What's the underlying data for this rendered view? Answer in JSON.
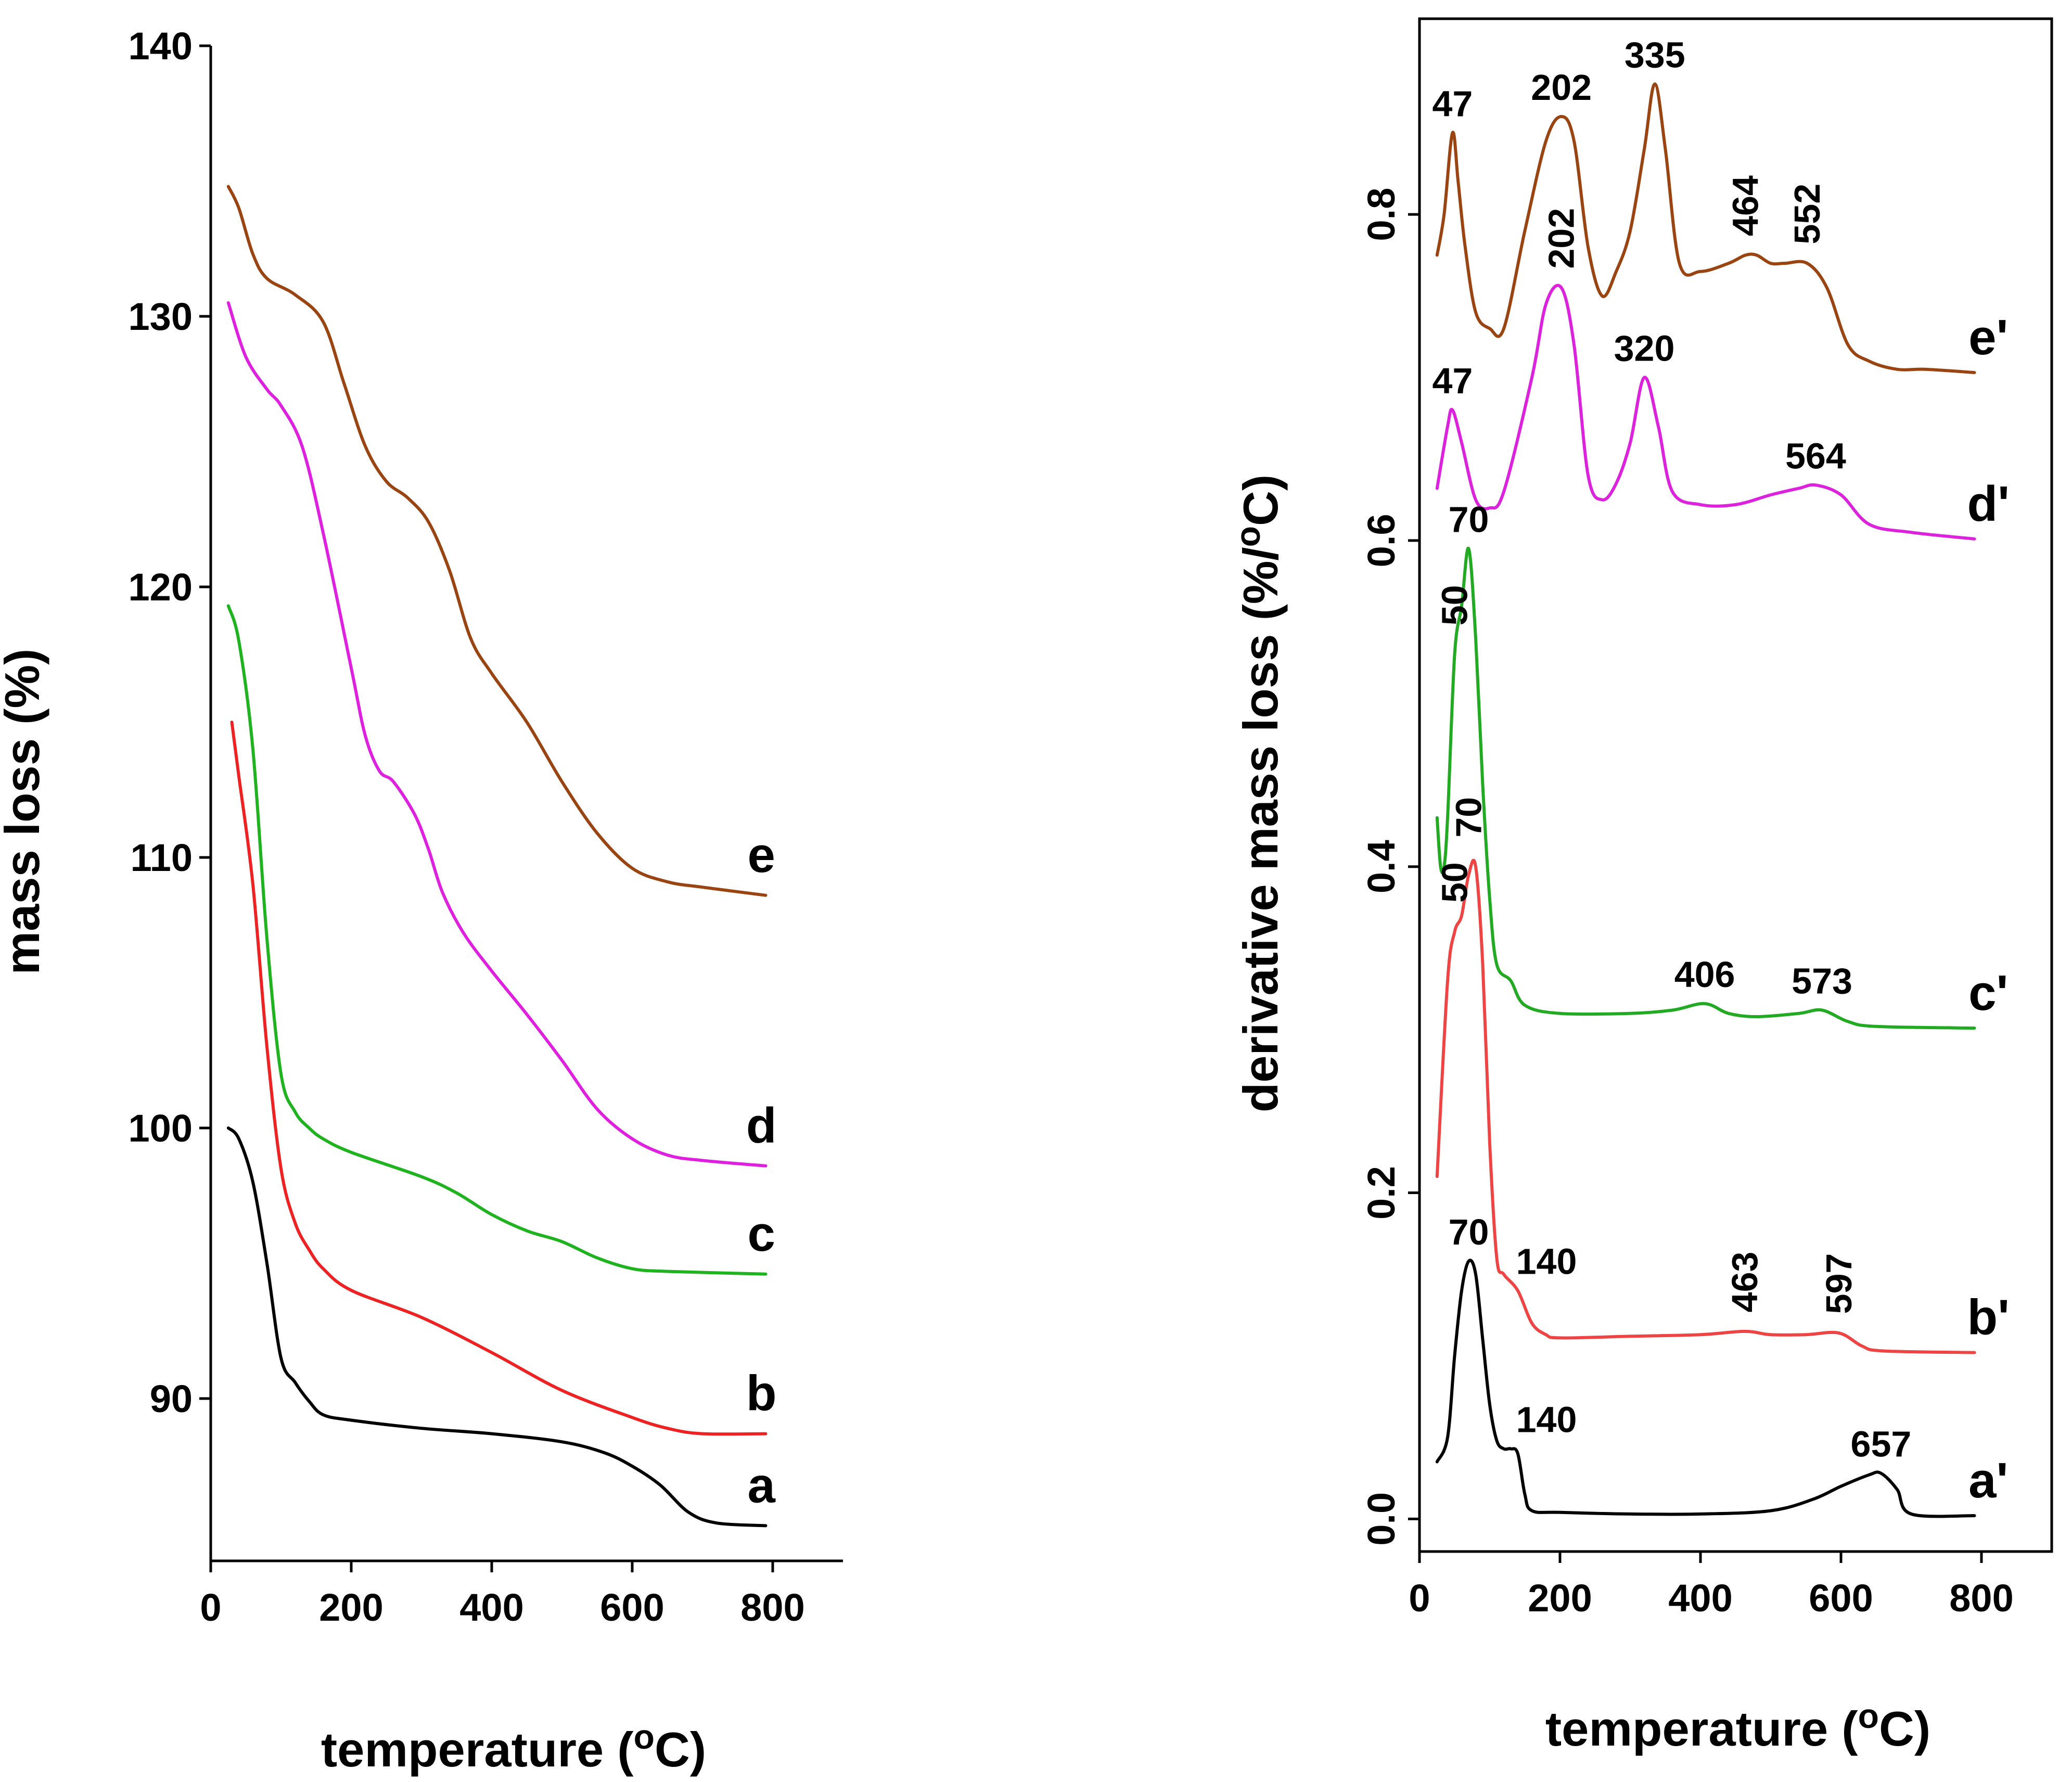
{
  "chart_data": [
    {
      "type": "line",
      "panel": "left",
      "title": "",
      "xlabel": "temperature",
      "xlabel_unit": "(oC)",
      "ylabel": "mass loss (%)",
      "xlim": [
        0,
        900
      ],
      "ylim": [
        84,
        140
      ],
      "xticks": [
        0,
        200,
        400,
        600,
        800
      ],
      "yticks": [
        90,
        100,
        110,
        120,
        130,
        140
      ],
      "grid": false,
      "series": [
        {
          "name": "a",
          "color": "#000000",
          "x": [
            25,
            40,
            60,
            80,
            100,
            120,
            140,
            160,
            200,
            300,
            400,
            500,
            560,
            600,
            640,
            680,
            720,
            790
          ],
          "y": [
            100,
            99.6,
            98,
            95,
            91.5,
            90.6,
            89.9,
            89.4,
            89.2,
            88.9,
            88.7,
            88.4,
            88.0,
            87.5,
            86.8,
            85.8,
            85.4,
            85.3
          ]
        },
        {
          "name": "b",
          "color": "#ee2222",
          "x": [
            30,
            40,
            60,
            80,
            100,
            120,
            140,
            160,
            200,
            300,
            400,
            500,
            600,
            650,
            700,
            790
          ],
          "y": [
            115,
            113,
            109,
            103,
            98.5,
            96.5,
            95.5,
            94.8,
            94.0,
            93.0,
            91.7,
            90.3,
            89.3,
            88.9,
            88.7,
            88.7
          ]
        },
        {
          "name": "c",
          "color": "#1fb31f",
          "x": [
            25,
            40,
            60,
            80,
            100,
            120,
            140,
            160,
            200,
            300,
            350,
            400,
            450,
            500,
            550,
            600,
            650,
            790
          ],
          "y": [
            119.3,
            118,
            114,
            107,
            102,
            100.6,
            100.0,
            99.6,
            99.1,
            98.2,
            97.6,
            96.8,
            96.2,
            95.8,
            95.2,
            94.8,
            94.7,
            94.6
          ]
        },
        {
          "name": "d",
          "color": "#e020e0",
          "x": [
            25,
            50,
            80,
            100,
            130,
            160,
            200,
            220,
            240,
            260,
            290,
            310,
            330,
            360,
            400,
            450,
            500,
            550,
            600,
            650,
            700,
            790
          ],
          "y": [
            130.5,
            128.5,
            127.3,
            126.7,
            125.2,
            122,
            117,
            114.5,
            113.2,
            112.8,
            111.6,
            110.3,
            108.7,
            107.2,
            105.8,
            104.2,
            102.5,
            100.7,
            99.6,
            99.0,
            98.8,
            98.6
          ]
        },
        {
          "name": "e",
          "color": "#994411",
          "x": [
            25,
            40,
            60,
            80,
            120,
            160,
            190,
            220,
            250,
            280,
            310,
            340,
            370,
            400,
            450,
            500,
            550,
            600,
            650,
            700,
            790
          ],
          "y": [
            134.8,
            134.0,
            132.3,
            131.4,
            130.8,
            129.8,
            127.5,
            125.2,
            123.9,
            123.3,
            122.4,
            120.6,
            118.1,
            116.8,
            115.0,
            112.8,
            110.9,
            109.6,
            109.1,
            108.9,
            108.6
          ]
        }
      ],
      "curve_labels": [
        "a",
        "b",
        "c",
        "d",
        "e"
      ]
    },
    {
      "type": "line",
      "panel": "right",
      "title": "",
      "xlabel": "temperature",
      "xlabel_unit": "(oC)",
      "ylabel": "derivative mass loss (%/oC)",
      "xlim": [
        0,
        900
      ],
      "ylim": [
        -0.02,
        0.92
      ],
      "xticks": [
        0,
        200,
        400,
        600,
        800
      ],
      "yticks": [
        0.0,
        0.2,
        0.4,
        0.6,
        0.8
      ],
      "grid": false,
      "series": [
        {
          "name": "a'",
          "color": "#000000",
          "x": [
            25,
            40,
            50,
            60,
            70,
            80,
            90,
            100,
            110,
            120,
            130,
            140,
            150,
            160,
            200,
            300,
            400,
            500,
            560,
            600,
            640,
            657,
            680,
            700,
            790
          ],
          "y": [
            0.035,
            0.05,
            0.1,
            0.14,
            0.158,
            0.15,
            0.11,
            0.07,
            0.048,
            0.043,
            0.043,
            0.04,
            0.015,
            0.005,
            0.004,
            0.003,
            0.003,
            0.005,
            0.012,
            0.02,
            0.027,
            0.028,
            0.018,
            0.003,
            0.002
          ]
        },
        {
          "name": "b'",
          "color": "#ee4444",
          "x": [
            25,
            40,
            50,
            60,
            70,
            80,
            90,
            100,
            110,
            120,
            140,
            160,
            180,
            200,
            300,
            400,
            463,
            500,
            550,
            597,
            630,
            660,
            790
          ],
          "y": [
            0.21,
            0.33,
            0.36,
            0.37,
            0.395,
            0.4,
            0.34,
            0.23,
            0.16,
            0.15,
            0.14,
            0.12,
            0.113,
            0.111,
            0.112,
            0.113,
            0.115,
            0.113,
            0.113,
            0.114,
            0.106,
            0.103,
            0.102
          ]
        },
        {
          "name": "c'",
          "color": "#22aa22",
          "x": [
            25,
            30,
            35,
            40,
            50,
            60,
            70,
            80,
            90,
            100,
            110,
            130,
            150,
            200,
            300,
            360,
            406,
            440,
            480,
            540,
            573,
            610,
            650,
            790
          ],
          "y": [
            0.43,
            0.4,
            0.4,
            0.43,
            0.53,
            0.56,
            0.595,
            0.54,
            0.45,
            0.38,
            0.34,
            0.33,
            0.315,
            0.31,
            0.31,
            0.312,
            0.316,
            0.31,
            0.308,
            0.31,
            0.312,
            0.305,
            0.302,
            0.301
          ]
        },
        {
          "name": "d'",
          "color": "#dd22dd",
          "x": [
            25,
            40,
            47,
            60,
            80,
            100,
            120,
            160,
            180,
            202,
            220,
            240,
            260,
            280,
            300,
            320,
            340,
            360,
            400,
            450,
            500,
            540,
            564,
            600,
            640,
            700,
            790
          ],
          "y": [
            0.632,
            0.67,
            0.68,
            0.66,
            0.625,
            0.62,
            0.63,
            0.7,
            0.745,
            0.755,
            0.72,
            0.64,
            0.625,
            0.635,
            0.66,
            0.7,
            0.67,
            0.63,
            0.622,
            0.622,
            0.628,
            0.632,
            0.634,
            0.628,
            0.61,
            0.605,
            0.601
          ]
        },
        {
          "name": "e'",
          "color": "#994411",
          "x": [
            25,
            35,
            47,
            55,
            65,
            80,
            100,
            120,
            150,
            180,
            202,
            220,
            240,
            260,
            280,
            300,
            320,
            335,
            350,
            370,
            400,
            440,
            464,
            480,
            500,
            520,
            552,
            580,
            610,
            640,
            680,
            720,
            790
          ],
          "y": [
            0.775,
            0.8,
            0.85,
            0.82,
            0.78,
            0.74,
            0.73,
            0.73,
            0.79,
            0.845,
            0.86,
            0.845,
            0.78,
            0.75,
            0.765,
            0.79,
            0.84,
            0.88,
            0.84,
            0.77,
            0.765,
            0.77,
            0.775,
            0.775,
            0.77,
            0.77,
            0.77,
            0.755,
            0.72,
            0.71,
            0.705,
            0.705,
            0.703
          ]
        }
      ],
      "curve_labels": [
        "a'",
        "b'",
        "c'",
        "d'",
        "e'"
      ],
      "annotations": [
        {
          "text": "47",
          "series": "e'",
          "x": 47,
          "y": 0.85
        },
        {
          "text": "202",
          "series": "e'",
          "x": 202,
          "y": 0.86
        },
        {
          "text": "335",
          "series": "e'",
          "x": 335,
          "y": 0.88
        },
        {
          "text": "464",
          "series": "e'",
          "x": 464,
          "y": 0.775,
          "rotated": true
        },
        {
          "text": "552",
          "series": "e'",
          "x": 552,
          "y": 0.77,
          "rotated": true
        },
        {
          "text": "47",
          "series": "d'",
          "x": 47,
          "y": 0.68
        },
        {
          "text": "202",
          "series": "d'",
          "x": 202,
          "y": 0.755,
          "rotated": true
        },
        {
          "text": "320",
          "series": "d'",
          "x": 320,
          "y": 0.7
        },
        {
          "text": "564",
          "series": "d'",
          "x": 564,
          "y": 0.634
        },
        {
          "text": "50",
          "series": "c'",
          "x": 50,
          "y": 0.53,
          "rotated": true
        },
        {
          "text": "70",
          "series": "c'",
          "x": 70,
          "y": 0.595
        },
        {
          "text": "406",
          "series": "c'",
          "x": 406,
          "y": 0.316
        },
        {
          "text": "573",
          "series": "c'",
          "x": 573,
          "y": 0.312
        },
        {
          "text": "50",
          "series": "b'",
          "x": 50,
          "y": 0.36,
          "rotated": true
        },
        {
          "text": "70",
          "series": "b'",
          "x": 70,
          "y": 0.4,
          "rotated": true
        },
        {
          "text": "140",
          "series": "b'",
          "x": 140,
          "y": 0.14
        },
        {
          "text": "463",
          "series": "b'",
          "x": 463,
          "y": 0.115,
          "rotated": true
        },
        {
          "text": "597",
          "series": "b'",
          "x": 597,
          "y": 0.114,
          "rotated": true
        },
        {
          "text": "70",
          "series": "a'",
          "x": 70,
          "y": 0.158
        },
        {
          "text": "140",
          "series": "a'",
          "x": 140,
          "y": 0.043
        },
        {
          "text": "657",
          "series": "a'",
          "x": 657,
          "y": 0.028
        }
      ]
    }
  ]
}
